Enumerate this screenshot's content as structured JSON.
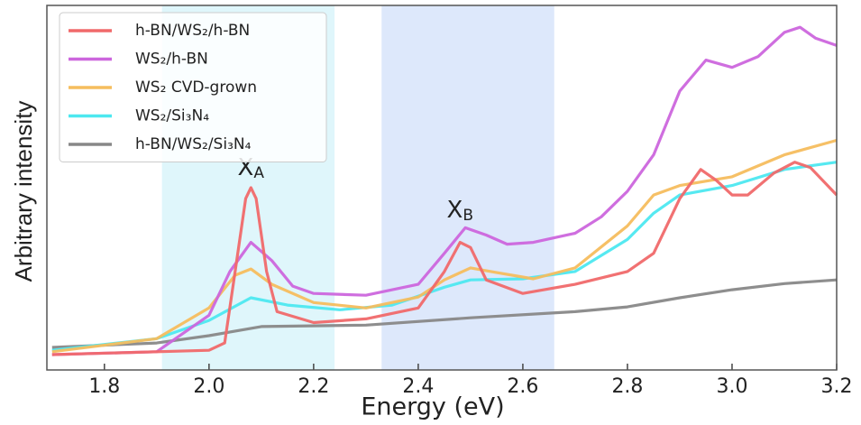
{
  "chart_data": {
    "type": "line",
    "xlabel": "Energy (eV)",
    "ylabel": "Arbitrary intensity",
    "xlim": [
      1.69,
      3.2
    ],
    "ylim": [
      0,
      100
    ],
    "xticks": [
      1.8,
      {
        "value": 2,
        "label": "2.0"
      },
      2.2,
      2.4,
      2.6,
      2.8,
      {
        "value": 3,
        "label": "3.0"
      },
      3.2
    ],
    "legend": "upper left",
    "shaded_regions": [
      {
        "xlim": [
          1.91,
          2.24
        ],
        "color": "#dff6fb"
      },
      {
        "xlim": [
          2.33,
          2.66
        ],
        "color": "#dde8fb"
      }
    ],
    "annotations": [
      {
        "text": "X",
        "subscript": "A",
        "x": 2.08
      },
      {
        "text": "X",
        "subscript": "B",
        "x": 2.48
      }
    ],
    "series": [
      {
        "name": "h-BN/WS₂/h-BN",
        "color": "#f0696a",
        "x": [
          1.7,
          2.0,
          2.03,
          2.05,
          2.07,
          2.08,
          2.09,
          2.11,
          2.13,
          2.2,
          2.3,
          2.4,
          2.45,
          2.48,
          2.5,
          2.53,
          2.6,
          2.7,
          2.8,
          2.85,
          2.9,
          2.94,
          2.97,
          3.0,
          3.03,
          3.08,
          3.12,
          3.15,
          3.2
        ],
        "values": [
          4.2,
          5.4,
          7.4,
          27,
          47,
          50,
          47,
          27,
          16,
          13,
          14,
          17,
          27,
          35,
          33.6,
          24.7,
          21,
          23.5,
          27,
          32,
          47,
          55,
          52,
          48,
          48,
          54,
          57,
          55.5,
          48
        ]
      },
      {
        "name": "WS₂/h-BN",
        "color": "#cc66dd",
        "x": [
          1.7,
          1.9,
          2.0,
          2.04,
          2.08,
          2.12,
          2.16,
          2.2,
          2.3,
          2.4,
          2.45,
          2.49,
          2.53,
          2.57,
          2.62,
          2.7,
          2.75,
          2.8,
          2.85,
          2.9,
          2.95,
          3.0,
          3.05,
          3.1,
          3.13,
          3.16,
          3.2
        ],
        "values": [
          4.2,
          5,
          15,
          27,
          35,
          30,
          23,
          21,
          20.5,
          23.5,
          32,
          39,
          37,
          34.5,
          35,
          37.5,
          42,
          49,
          59,
          76.5,
          85,
          83,
          86,
          92.6,
          94,
          91,
          89
        ]
      },
      {
        "name": "WS₂ CVD-grown",
        "color": "#f5bd5e",
        "x": [
          1.7,
          1.9,
          2.0,
          2.05,
          2.08,
          2.12,
          2.2,
          2.3,
          2.4,
          2.45,
          2.5,
          2.55,
          2.62,
          2.7,
          2.8,
          2.85,
          2.9,
          3.0,
          3.1,
          3.2
        ],
        "values": [
          5,
          8.6,
          17,
          26,
          27.7,
          23.5,
          18.5,
          17,
          20,
          24.7,
          28,
          26.7,
          25,
          28,
          39.5,
          48,
          50.6,
          53,
          59,
          63
        ]
      },
      {
        "name": "WS₂/Si₃N₄",
        "color": "#4de8f0",
        "x": [
          1.7,
          1.9,
          2.0,
          2.08,
          2.15,
          2.25,
          2.35,
          2.45,
          2.5,
          2.6,
          2.7,
          2.8,
          2.85,
          2.9,
          3.0,
          3.1,
          3.2
        ],
        "values": [
          5.4,
          8.6,
          13.6,
          19.8,
          17.8,
          16.5,
          17.8,
          22.7,
          24.7,
          25,
          27,
          35.8,
          43,
          48,
          50.6,
          55,
          57
        ]
      },
      {
        "name": "h-BN/WS₂/Si₃N₄",
        "color": "#888888",
        "x": [
          1.7,
          1.9,
          2.0,
          2.1,
          2.3,
          2.5,
          2.7,
          2.8,
          2.9,
          3.0,
          3.1,
          3.2
        ],
        "values": [
          6.2,
          7.4,
          9.4,
          11.9,
          12.3,
          14.3,
          16,
          17.3,
          19.8,
          22,
          23.7,
          24.7
        ]
      }
    ]
  }
}
